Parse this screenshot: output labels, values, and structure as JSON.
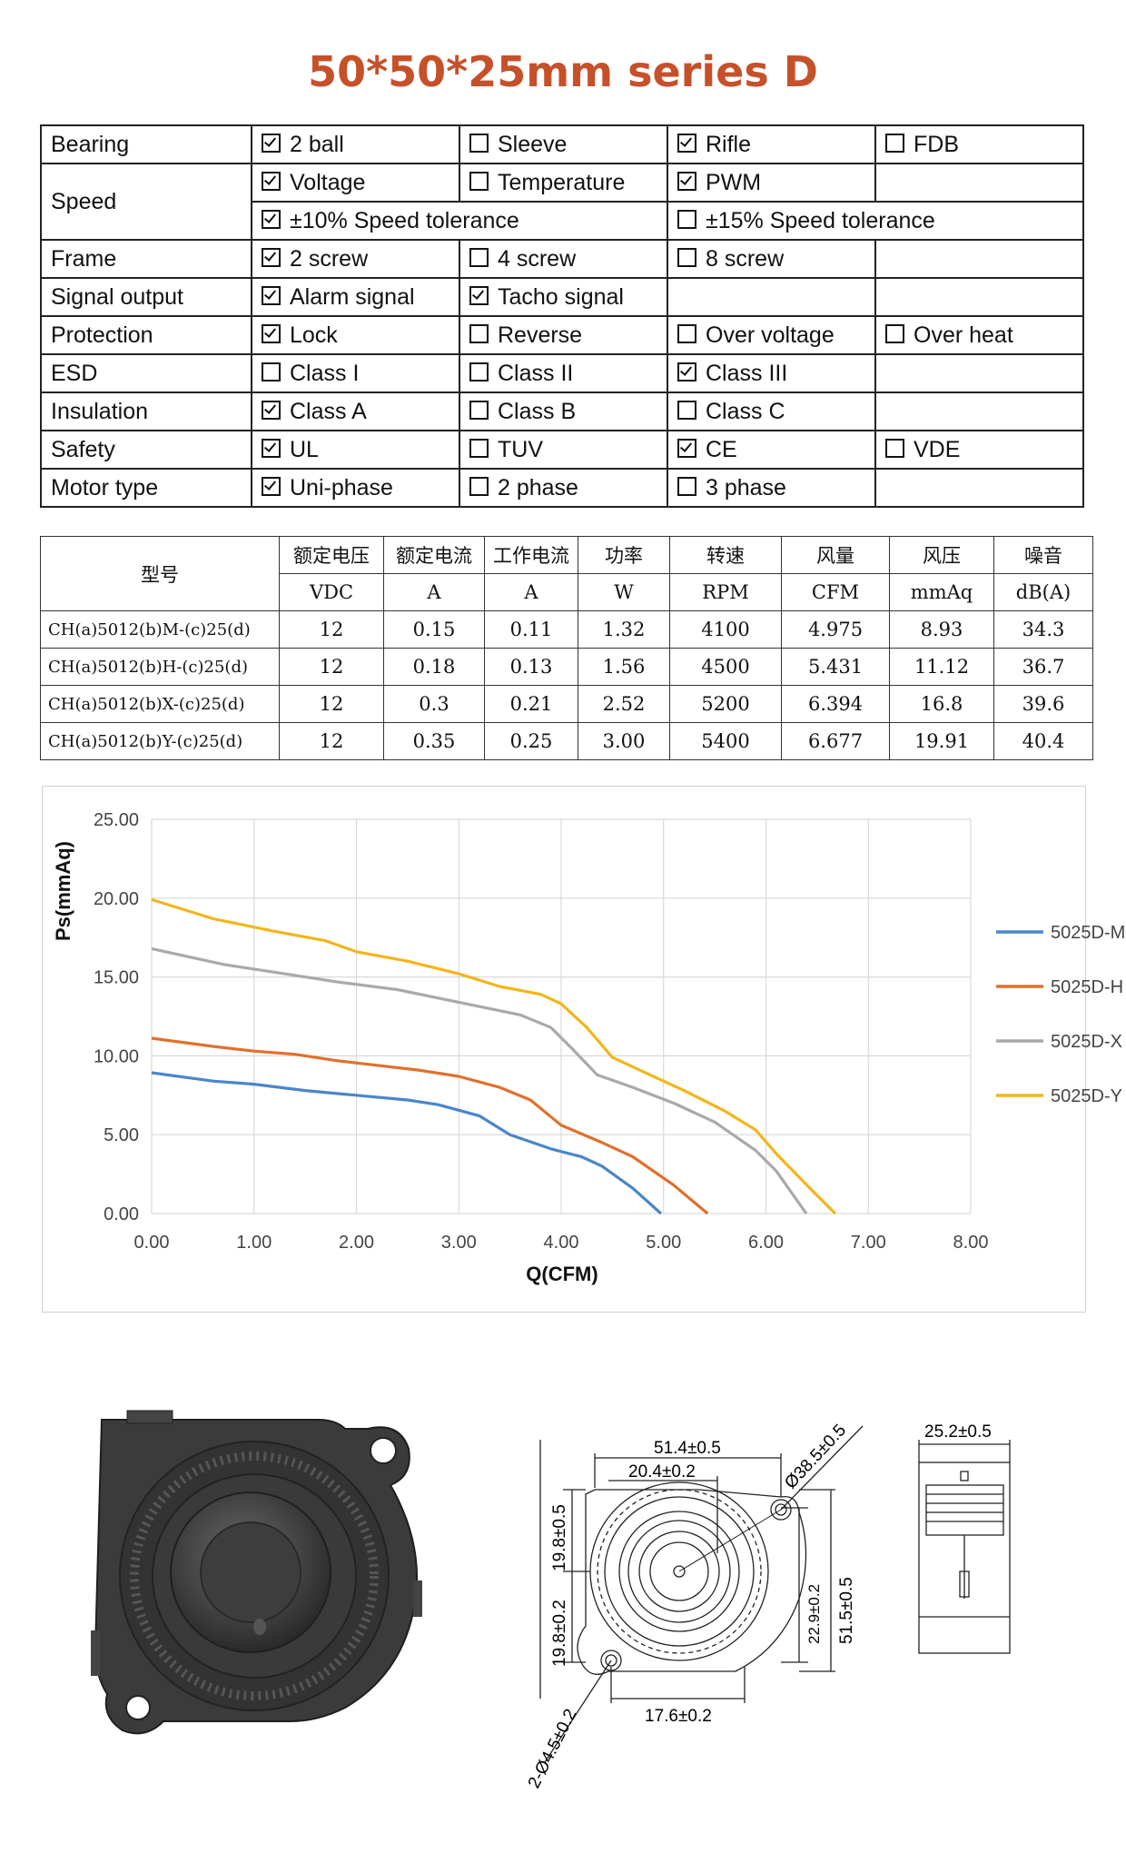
{
  "title": "50*50*25mm series D",
  "spec_rows": [
    {
      "label": "Bearing",
      "cells": [
        {
          "text": "2 ball",
          "checked": true
        },
        {
          "text": "Sleeve",
          "checked": false
        },
        {
          "text": "Rifle",
          "checked": true
        },
        {
          "text": "FDB",
          "checked": false
        }
      ]
    },
    {
      "label": "Speed",
      "cells": [
        {
          "text": "Voltage",
          "checked": true
        },
        {
          "text": "Temperature",
          "checked": false
        },
        {
          "text": "PWM",
          "checked": true
        },
        {
          "text": "",
          "checked": null
        }
      ]
    },
    {
      "label": "",
      "cells": [
        {
          "text": "±10% Speed tolerance",
          "checked": true
        },
        {
          "text": "±15% Speed tolerance",
          "checked": false
        }
      ]
    },
    {
      "label": "Frame",
      "cells": [
        {
          "text": "2 screw",
          "checked": true
        },
        {
          "text": "4 screw",
          "checked": false
        },
        {
          "text": "8 screw",
          "checked": false
        },
        {
          "text": "",
          "checked": null
        }
      ]
    },
    {
      "label": "Signal output",
      "cells": [
        {
          "text": "Alarm signal",
          "checked": true
        },
        {
          "text": "Tacho signal",
          "checked": true
        },
        {
          "text": "",
          "checked": null
        },
        {
          "text": "",
          "checked": null
        }
      ]
    },
    {
      "label": "Protection",
      "cells": [
        {
          "text": "Lock",
          "checked": true
        },
        {
          "text": "Reverse",
          "checked": false
        },
        {
          "text": "Over voltage",
          "checked": false
        },
        {
          "text": "Over heat",
          "checked": false
        }
      ]
    },
    {
      "label": "ESD",
      "cells": [
        {
          "text": "Class I",
          "checked": false
        },
        {
          "text": "Class II",
          "checked": false
        },
        {
          "text": "Class III",
          "checked": true
        },
        {
          "text": "",
          "checked": null
        }
      ]
    },
    {
      "label": "Insulation",
      "cells": [
        {
          "text": "Class A",
          "checked": true
        },
        {
          "text": "Class B",
          "checked": false
        },
        {
          "text": "Class C",
          "checked": false
        },
        {
          "text": "",
          "checked": null
        }
      ]
    },
    {
      "label": "Safety",
      "cells": [
        {
          "text": "UL",
          "checked": true
        },
        {
          "text": "TUV",
          "checked": false
        },
        {
          "text": "CE",
          "checked": true
        },
        {
          "text": "VDE",
          "checked": false
        }
      ]
    },
    {
      "label": "Motor type",
      "cells": [
        {
          "text": "Uni-phase",
          "checked": true
        },
        {
          "text": "2 phase",
          "checked": false
        },
        {
          "text": "3 phase",
          "checked": false
        },
        {
          "text": "",
          "checked": null
        }
      ]
    }
  ],
  "perf": {
    "model_header": "型号",
    "headers": [
      "额定电压",
      "额定电流",
      "工作电流",
      "功率",
      "转速",
      "风量",
      "风压",
      "噪音"
    ],
    "units": [
      "VDC",
      "A",
      "A",
      "W",
      "RPM",
      "CFM",
      "mmAq",
      "dB(A)"
    ],
    "rows": [
      [
        "CH(a)5012(b)M-(c)25(d)",
        "12",
        "0.15",
        "0.11",
        "1.32",
        "4100",
        "4.975",
        "8.93",
        "34.3"
      ],
      [
        "CH(a)5012(b)H-(c)25(d)",
        "12",
        "0.18",
        "0.13",
        "1.56",
        "4500",
        "5.431",
        "11.12",
        "36.7"
      ],
      [
        "CH(a)5012(b)X-(c)25(d)",
        "12",
        "0.3",
        "0.21",
        "2.52",
        "5200",
        "6.394",
        "16.8",
        "39.6"
      ],
      [
        "CH(a)5012(b)Y-(c)25(d)",
        "12",
        "0.35",
        "0.25",
        "3.00",
        "5400",
        "6.677",
        "19.91",
        "40.4"
      ]
    ]
  },
  "chart_data": {
    "type": "line",
    "title": "",
    "xlabel": "Q(CFM)",
    "ylabel": "Ps(mmAq)",
    "xlim": [
      0,
      8
    ],
    "ylim": [
      0,
      25
    ],
    "xticks": [
      "0.00",
      "1.00",
      "2.00",
      "3.00",
      "4.00",
      "5.00",
      "6.00",
      "7.00",
      "8.00"
    ],
    "yticks": [
      "0.00",
      "5.00",
      "10.00",
      "15.00",
      "20.00",
      "25.00"
    ],
    "grid": true,
    "legend": "right",
    "series": [
      {
        "name": "5025D-M",
        "color": "#4a86c8",
        "points": [
          [
            0,
            8.93
          ],
          [
            0.6,
            8.4
          ],
          [
            1.0,
            8.2
          ],
          [
            1.5,
            7.8
          ],
          [
            2.0,
            7.5
          ],
          [
            2.5,
            7.2
          ],
          [
            2.8,
            6.9
          ],
          [
            3.2,
            6.2
          ],
          [
            3.5,
            5.0
          ],
          [
            3.9,
            4.1
          ],
          [
            4.2,
            3.6
          ],
          [
            4.4,
            3.0
          ],
          [
            4.7,
            1.6
          ],
          [
            4.975,
            0
          ]
        ]
      },
      {
        "name": "5025D-H",
        "color": "#e0702c",
        "points": [
          [
            0,
            11.12
          ],
          [
            0.6,
            10.6
          ],
          [
            1.0,
            10.3
          ],
          [
            1.4,
            10.1
          ],
          [
            1.8,
            9.7
          ],
          [
            2.2,
            9.4
          ],
          [
            2.6,
            9.1
          ],
          [
            3.0,
            8.7
          ],
          [
            3.4,
            8.0
          ],
          [
            3.7,
            7.2
          ],
          [
            4.0,
            5.6
          ],
          [
            4.4,
            4.5
          ],
          [
            4.7,
            3.6
          ],
          [
            5.1,
            1.8
          ],
          [
            5.431,
            0
          ]
        ]
      },
      {
        "name": "5025D-X",
        "color": "#a9a9a9",
        "points": [
          [
            0,
            16.8
          ],
          [
            0.7,
            15.8
          ],
          [
            1.3,
            15.2
          ],
          [
            1.8,
            14.7
          ],
          [
            2.4,
            14.2
          ],
          [
            3.0,
            13.4
          ],
          [
            3.6,
            12.6
          ],
          [
            3.9,
            11.8
          ],
          [
            4.1,
            10.5
          ],
          [
            4.35,
            8.8
          ],
          [
            4.7,
            8.0
          ],
          [
            5.1,
            7.0
          ],
          [
            5.5,
            5.8
          ],
          [
            5.9,
            4.0
          ],
          [
            6.1,
            2.7
          ],
          [
            6.394,
            0
          ]
        ]
      },
      {
        "name": "5025D-Y",
        "color": "#f2b51b",
        "points": [
          [
            0,
            19.91
          ],
          [
            0.6,
            18.7
          ],
          [
            1.2,
            17.9
          ],
          [
            1.7,
            17.3
          ],
          [
            2.0,
            16.6
          ],
          [
            2.5,
            16.0
          ],
          [
            3.0,
            15.2
          ],
          [
            3.4,
            14.4
          ],
          [
            3.8,
            13.9
          ],
          [
            4.0,
            13.3
          ],
          [
            4.25,
            11.8
          ],
          [
            4.5,
            9.9
          ],
          [
            4.8,
            9.0
          ],
          [
            5.2,
            7.8
          ],
          [
            5.6,
            6.5
          ],
          [
            5.9,
            5.3
          ],
          [
            6.1,
            3.8
          ],
          [
            6.4,
            1.8
          ],
          [
            6.677,
            0
          ]
        ]
      }
    ]
  },
  "drawing": {
    "dim_width": "51.4±0.5",
    "dim_center": "20.4±0.2",
    "dim_diameter": "Ø38.5±0.5",
    "dim_upper": "19.8±0.5",
    "dim_lower": "19.8±0.2",
    "dim_hole_vertical": "22.9±0.2",
    "dim_height": "51.5±0.5",
    "dim_bottom": "17.6±0.2",
    "dim_holes": "2-Ø4.5±0.2",
    "dim_thickness": "25.2±0.5"
  }
}
